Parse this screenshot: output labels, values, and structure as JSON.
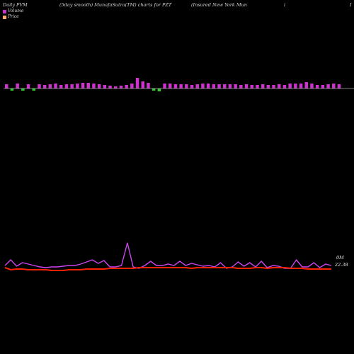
{
  "header": {
    "left": "Daily PVM",
    "mid": "(5day smooth) MunafaSutra(TM) charts for PZT",
    "right": "(Insured New  York Mun",
    "frag1": "i",
    "frag2": "I"
  },
  "legend": {
    "volume": "Volume",
    "price": "Price"
  },
  "colors": {
    "background": "#000000",
    "volume_up": "#cc33cc",
    "volume_down": "#33cc33",
    "volume_line": "#cc44ee",
    "price_line": "#ff2200",
    "baseline": "#aaaaaa"
  },
  "chart_data": {
    "type": "bar",
    "volume_bars": [
      {
        "dir": "up",
        "h": 6
      },
      {
        "dir": "down",
        "h": 3
      },
      {
        "dir": "up",
        "h": 7
      },
      {
        "dir": "down",
        "h": 3
      },
      {
        "dir": "up",
        "h": 6
      },
      {
        "dir": "down",
        "h": 3
      },
      {
        "dir": "up",
        "h": 6
      },
      {
        "dir": "up",
        "h": 5
      },
      {
        "dir": "up",
        "h": 6
      },
      {
        "dir": "up",
        "h": 7
      },
      {
        "dir": "up",
        "h": 5
      },
      {
        "dir": "up",
        "h": 6
      },
      {
        "dir": "up",
        "h": 6
      },
      {
        "dir": "up",
        "h": 7
      },
      {
        "dir": "up",
        "h": 8
      },
      {
        "dir": "up",
        "h": 8
      },
      {
        "dir": "up",
        "h": 7
      },
      {
        "dir": "up",
        "h": 6
      },
      {
        "dir": "up",
        "h": 5
      },
      {
        "dir": "up",
        "h": 4
      },
      {
        "dir": "up",
        "h": 3
      },
      {
        "dir": "up",
        "h": 4
      },
      {
        "dir": "up",
        "h": 5
      },
      {
        "dir": "up",
        "h": 7
      },
      {
        "dir": "up",
        "h": 15
      },
      {
        "dir": "up",
        "h": 10
      },
      {
        "dir": "up",
        "h": 8
      },
      {
        "dir": "down",
        "h": 3
      },
      {
        "dir": "down",
        "h": 4
      },
      {
        "dir": "up",
        "h": 7
      },
      {
        "dir": "up",
        "h": 7
      },
      {
        "dir": "up",
        "h": 6
      },
      {
        "dir": "up",
        "h": 6
      },
      {
        "dir": "up",
        "h": 6
      },
      {
        "dir": "up",
        "h": 5
      },
      {
        "dir": "up",
        "h": 6
      },
      {
        "dir": "up",
        "h": 7
      },
      {
        "dir": "up",
        "h": 7
      },
      {
        "dir": "up",
        "h": 6
      },
      {
        "dir": "up",
        "h": 6
      },
      {
        "dir": "up",
        "h": 6
      },
      {
        "dir": "up",
        "h": 6
      },
      {
        "dir": "up",
        "h": 6
      },
      {
        "dir": "up",
        "h": 5
      },
      {
        "dir": "up",
        "h": 6
      },
      {
        "dir": "up",
        "h": 5
      },
      {
        "dir": "up",
        "h": 5
      },
      {
        "dir": "up",
        "h": 6
      },
      {
        "dir": "up",
        "h": 5
      },
      {
        "dir": "up",
        "h": 5
      },
      {
        "dir": "up",
        "h": 6
      },
      {
        "dir": "up",
        "h": 5
      },
      {
        "dir": "up",
        "h": 7
      },
      {
        "dir": "up",
        "h": 7
      },
      {
        "dir": "up",
        "h": 7
      },
      {
        "dir": "up",
        "h": 9
      },
      {
        "dir": "up",
        "h": 7
      },
      {
        "dir": "up",
        "h": 5
      },
      {
        "dir": "up",
        "h": 5
      },
      {
        "dir": "up",
        "h": 6
      },
      {
        "dir": "up",
        "h": 7
      },
      {
        "dir": "up",
        "h": 6
      }
    ],
    "volume_line": [
      80,
      88,
      79,
      84,
      82,
      80,
      78,
      77,
      78,
      78,
      79,
      80,
      80,
      82,
      85,
      88,
      83,
      87,
      78,
      78,
      80,
      112,
      78,
      76,
      80,
      86,
      80,
      80,
      82,
      80,
      86,
      80,
      83,
      81,
      79,
      80,
      78,
      84,
      76,
      78,
      85,
      79,
      84,
      78,
      86,
      77,
      80,
      79,
      76,
      76,
      88,
      78,
      78,
      84,
      77,
      82,
      80
    ],
    "price_line": [
      77,
      74,
      75,
      75,
      74,
      74,
      74,
      74,
      73,
      73,
      73,
      74,
      74,
      74,
      75,
      75,
      75,
      75,
      76,
      76,
      76,
      76,
      76,
      77,
      77,
      77,
      77,
      77,
      77,
      77,
      77,
      77,
      76,
      77,
      77,
      77,
      77,
      77,
      77,
      77,
      76,
      76,
      76,
      77,
      77,
      76,
      77,
      77,
      77,
      76,
      76,
      76,
      75,
      75,
      75,
      75,
      75
    ],
    "last_volume_label": "0M",
    "last_price_label": "22.38"
  }
}
